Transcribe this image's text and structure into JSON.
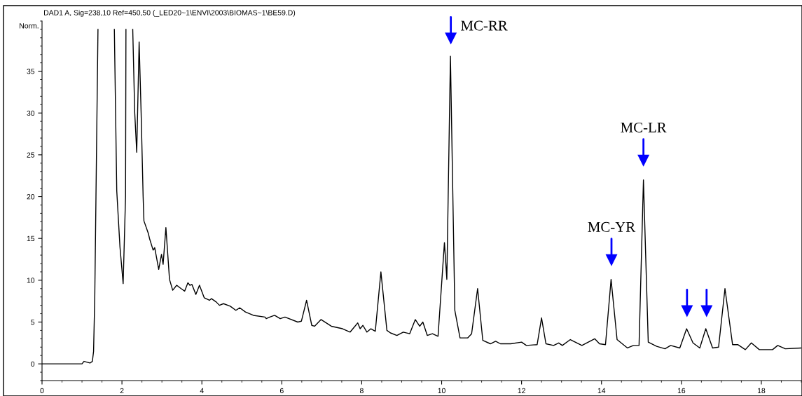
{
  "chart_data": {
    "type": "line",
    "title": "DAD1 A, Sig=238,10 Ref=450,50 (_LED20~1\\ENVI\\2003\\BIOMAS~1\\BE59.D)",
    "ylabel": "Norm.",
    "xlim": [
      0,
      19
    ],
    "ylim": [
      -2,
      41
    ],
    "xticks": [
      0,
      2,
      4,
      6,
      8,
      10,
      12,
      14,
      16,
      18
    ],
    "yticks": [
      0,
      5,
      10,
      15,
      20,
      25,
      30,
      35
    ],
    "grid": false,
    "legend": false,
    "series": [
      {
        "color": "#000000",
        "x": [
          0,
          0.5,
          1.0,
          1.05,
          1.2,
          1.26,
          1.29,
          1.32,
          1.35,
          1.4,
          1.6,
          1.81,
          1.87,
          1.95,
          2.03,
          2.09,
          2.1,
          2.2,
          2.27,
          2.32,
          2.37,
          2.43,
          2.48,
          2.53,
          2.55,
          2.66,
          2.69,
          2.78,
          2.82,
          2.92,
          2.99,
          3.03,
          3.1,
          3.19,
          3.27,
          3.37,
          3.48,
          3.57,
          3.65,
          3.7,
          3.75,
          3.85,
          3.94,
          4.06,
          4.19,
          4.24,
          4.36,
          4.44,
          4.54,
          4.71,
          4.85,
          4.95,
          5.09,
          5.29,
          5.58,
          5.61,
          5.7,
          5.82,
          5.96,
          6.08,
          6.4,
          6.49,
          6.62,
          6.75,
          6.82,
          6.98,
          7.24,
          7.52,
          7.71,
          7.9,
          7.96,
          8.03,
          8.13,
          8.23,
          8.34,
          8.48,
          8.63,
          8.72,
          8.88,
          9.04,
          9.2,
          9.34,
          9.45,
          9.53,
          9.64,
          9.77,
          9.91,
          10.07,
          10.13,
          10.22,
          10.33,
          10.46,
          10.65,
          10.75,
          10.9,
          11.03,
          11.22,
          11.35,
          11.47,
          11.73,
          12.0,
          12.12,
          12.39,
          12.5,
          12.61,
          12.8,
          12.93,
          13.02,
          13.22,
          13.51,
          13.83,
          13.95,
          14.1,
          14.24,
          14.39,
          14.65,
          14.8,
          14.94,
          15.05,
          15.17,
          15.38,
          15.59,
          15.73,
          15.96,
          16.13,
          16.29,
          16.46,
          16.61,
          16.78,
          16.93,
          17.09,
          17.28,
          17.41,
          17.6,
          17.75,
          17.95,
          18.28,
          18.41,
          18.6,
          19.0
        ],
        "values": [
          0,
          0,
          0,
          0.3,
          0.1,
          0.3,
          1.5,
          8,
          20,
          40,
          null,
          40,
          20.7,
          14,
          9.6,
          20,
          40,
          null,
          40,
          30,
          25.3,
          38.5,
          30,
          20,
          17.1,
          15.6,
          15,
          13.6,
          13.9,
          11.3,
          13.1,
          11.9,
          16.3,
          10.1,
          8.8,
          9.4,
          9.0,
          8.7,
          9.7,
          9.4,
          9.5,
          8.3,
          9.4,
          7.9,
          7.6,
          7.8,
          7.4,
          7.0,
          7.2,
          6.9,
          6.4,
          6.7,
          6.2,
          5.8,
          5.6,
          5.4,
          5.6,
          5.8,
          5.4,
          5.6,
          5.0,
          5.1,
          7.6,
          4.6,
          4.5,
          5.3,
          4.5,
          4.2,
          3.8,
          4.9,
          4.2,
          4.6,
          3.8,
          4.2,
          3.9,
          11.0,
          4.0,
          3.7,
          3.4,
          3.8,
          3.6,
          5.3,
          4.5,
          5.0,
          3.4,
          3.6,
          3.3,
          14.5,
          10.1,
          36.8,
          6.4,
          3.1,
          3.1,
          3.6,
          9.0,
          2.8,
          2.4,
          2.7,
          2.4,
          2.4,
          2.6,
          2.2,
          2.3,
          5.5,
          2.4,
          2.2,
          2.5,
          2.2,
          2.9,
          2.2,
          3.0,
          2.4,
          2.3,
          10.1,
          2.9,
          1.9,
          2.2,
          2.2,
          22.0,
          2.6,
          2.1,
          1.8,
          2.2,
          1.9,
          4.2,
          2.5,
          1.9,
          4.2,
          1.9,
          2.0,
          9.0,
          2.3,
          2.3,
          1.7,
          2.5,
          1.7,
          1.7,
          2.2,
          1.8,
          1.9
        ]
      },
      {
        "type": "scatter",
        "marker": "triangle",
        "color": "#0000ff",
        "x": [
          10.23,
          14.25,
          15.05,
          16.14,
          16.63
        ],
        "values": [
          38.9,
          12.4,
          24.3,
          6.3,
          6.3
        ]
      }
    ],
    "annotations": [
      {
        "text": "MC-RR",
        "x": 10.23,
        "y": 38.9
      },
      {
        "text": "MC-YR",
        "x": 14.25,
        "y": 12.4
      },
      {
        "text": "MC-LR",
        "x": 15.05,
        "y": 24.3
      }
    ]
  }
}
